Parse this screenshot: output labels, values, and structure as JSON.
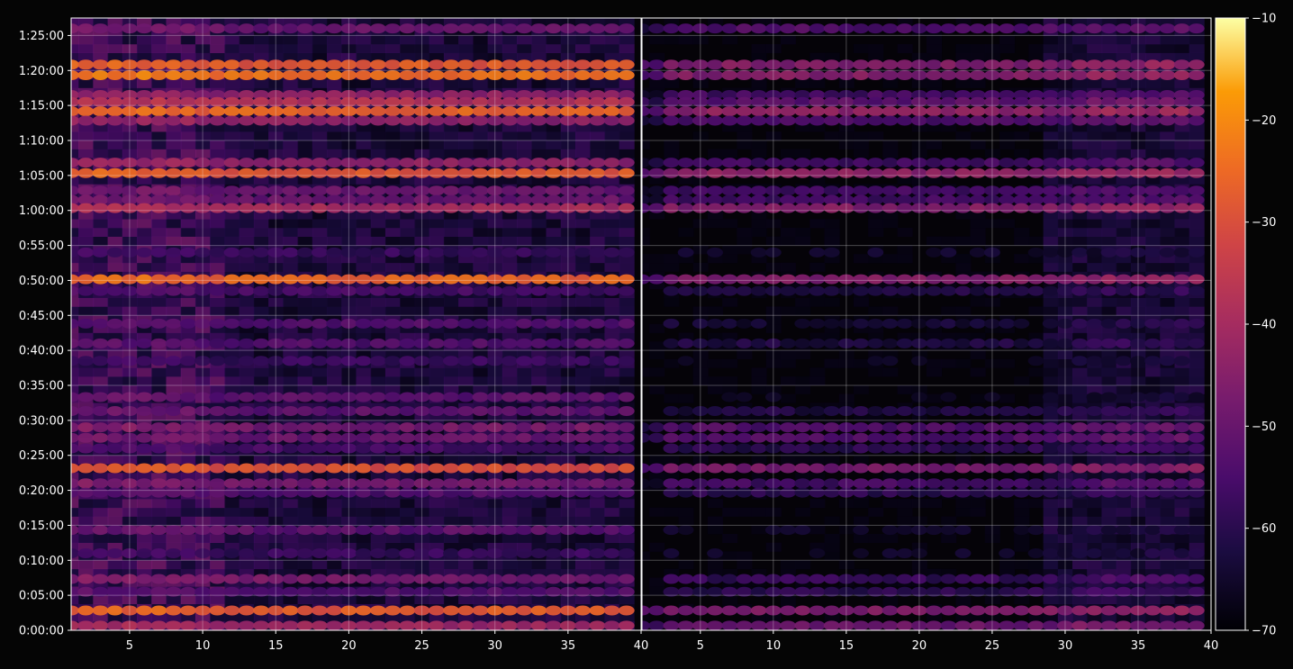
{
  "chart_data": {
    "type": "heatmap",
    "title": "",
    "xlabel": "",
    "ylabel": "",
    "colormap": "inferno",
    "background": "#050505",
    "grid": true,
    "panels": [
      {
        "name": "left",
        "xlim": [
          1,
          40
        ],
        "xticks": [
          5,
          10,
          15,
          20,
          25,
          30,
          35,
          40
        ],
        "y_label_side": "left"
      },
      {
        "name": "right",
        "xlim": [
          1,
          40
        ],
        "xticks": [
          5,
          10,
          15,
          20,
          25,
          30,
          35,
          40
        ],
        "y_label_side": "none"
      }
    ],
    "y_axis": {
      "range_seconds": [
        0,
        5250
      ],
      "ticks": [
        {
          "seconds": 0,
          "label": "0:00:00"
        },
        {
          "seconds": 300,
          "label": "0:05:00"
        },
        {
          "seconds": 600,
          "label": "0:10:00"
        },
        {
          "seconds": 900,
          "label": "0:15:00"
        },
        {
          "seconds": 1200,
          "label": "0:20:00"
        },
        {
          "seconds": 1500,
          "label": "0:25:00"
        },
        {
          "seconds": 1800,
          "label": "0:30:00"
        },
        {
          "seconds": 2100,
          "label": "0:35:00"
        },
        {
          "seconds": 2400,
          "label": "0:40:00"
        },
        {
          "seconds": 2700,
          "label": "0:45:00"
        },
        {
          "seconds": 3000,
          "label": "0:50:00"
        },
        {
          "seconds": 3300,
          "label": "0:55:00"
        },
        {
          "seconds": 3600,
          "label": "1:00:00"
        },
        {
          "seconds": 3900,
          "label": "1:05:00"
        },
        {
          "seconds": 4200,
          "label": "1:10:00"
        },
        {
          "seconds": 4500,
          "label": "1:15:00"
        },
        {
          "seconds": 4800,
          "label": "1:20:00"
        },
        {
          "seconds": 5100,
          "label": "1:25:00"
        }
      ]
    },
    "colorbar": {
      "range": [
        -70,
        -10
      ],
      "ticks": [
        -10,
        -20,
        -30,
        -40,
        -50,
        -60,
        -70
      ],
      "labels": [
        "−10",
        "−20",
        "−30",
        "−40",
        "−50",
        "−60",
        "−70"
      ]
    },
    "bands": [
      {
        "seconds": 5160,
        "left": -50,
        "right": -54
      },
      {
        "seconds": 4850,
        "left": -28,
        "right": -46
      },
      {
        "seconds": 4760,
        "left": -24,
        "right": -46
      },
      {
        "seconds": 4590,
        "left": -44,
        "right": -56
      },
      {
        "seconds": 4530,
        "left": -38,
        "right": -52
      },
      {
        "seconds": 4450,
        "left": -26,
        "right": -44
      },
      {
        "seconds": 4370,
        "left": -44,
        "right": -54
      },
      {
        "seconds": 4010,
        "left": -44,
        "right": -56
      },
      {
        "seconds": 3920,
        "left": -28,
        "right": -44
      },
      {
        "seconds": 3770,
        "left": -50,
        "right": -56
      },
      {
        "seconds": 3690,
        "left": -50,
        "right": -56
      },
      {
        "seconds": 3620,
        "left": -40,
        "right": -46
      },
      {
        "seconds": 3240,
        "left": -58,
        "right": -66
      },
      {
        "seconds": 3010,
        "left": -26,
        "right": -46
      },
      {
        "seconds": 2910,
        "left": -56,
        "right": -62
      },
      {
        "seconds": 2630,
        "left": -54,
        "right": -64
      },
      {
        "seconds": 2460,
        "left": -54,
        "right": -62
      },
      {
        "seconds": 2310,
        "left": -58,
        "right": -68
      },
      {
        "seconds": 2000,
        "left": -52,
        "right": -68
      },
      {
        "seconds": 1880,
        "left": -52,
        "right": -62
      },
      {
        "seconds": 1740,
        "left": -48,
        "right": -54
      },
      {
        "seconds": 1650,
        "left": -50,
        "right": -54
      },
      {
        "seconds": 1560,
        "left": -56,
        "right": -60
      },
      {
        "seconds": 1390,
        "left": -30,
        "right": -48
      },
      {
        "seconds": 1260,
        "left": -48,
        "right": -56
      },
      {
        "seconds": 1180,
        "left": -54,
        "right": -60
      },
      {
        "seconds": 860,
        "left": -52,
        "right": -66
      },
      {
        "seconds": 660,
        "left": -58,
        "right": -66
      },
      {
        "seconds": 440,
        "left": -48,
        "right": -58
      },
      {
        "seconds": 330,
        "left": -54,
        "right": -60
      },
      {
        "seconds": 170,
        "left": -28,
        "right": -46
      },
      {
        "seconds": 40,
        "left": -42,
        "right": -50
      }
    ]
  }
}
